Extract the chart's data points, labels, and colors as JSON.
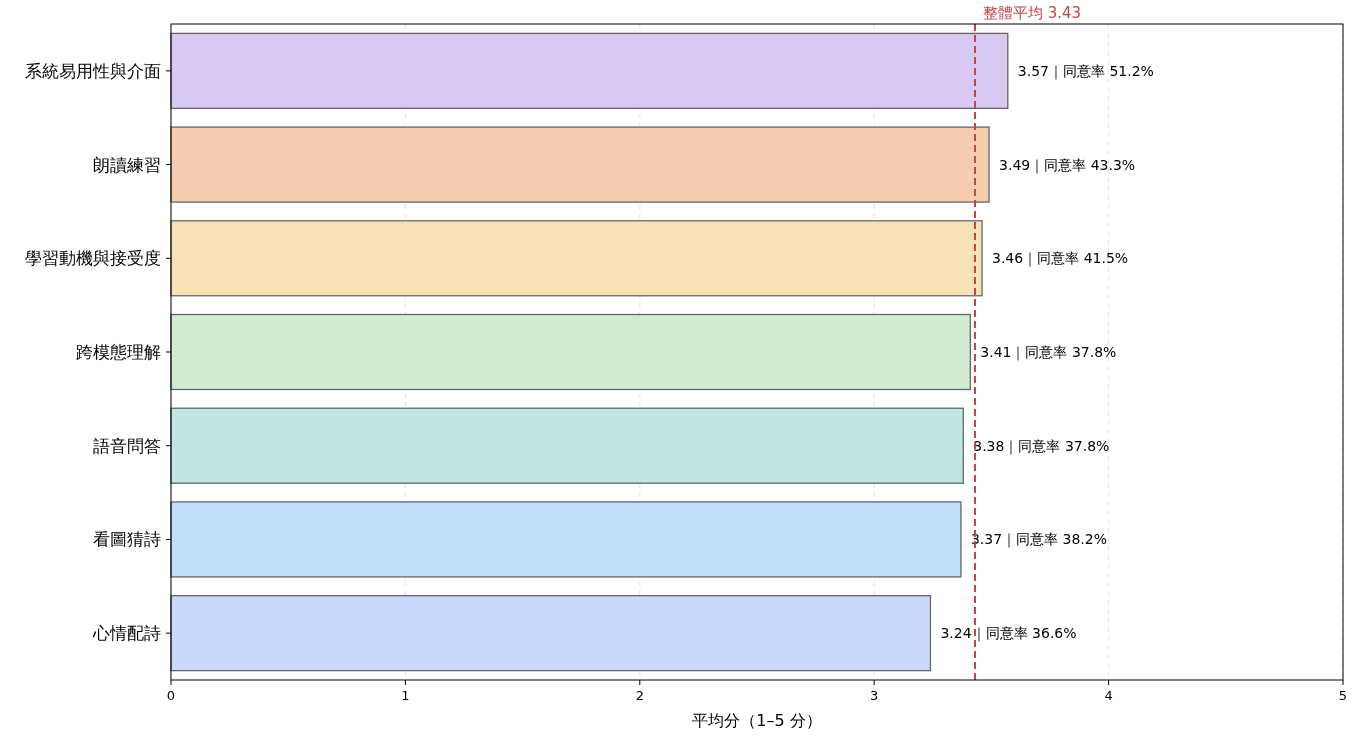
{
  "chart_data": {
    "type": "bar",
    "orientation": "horizontal",
    "xlabel": "平均分（1–5 分）",
    "categories": [
      "系統易用性與介面",
      "朗讀練習",
      "學習動機與接受度",
      "跨模態理解",
      "語音問答",
      "看圖猜詩",
      "心情配詩"
    ],
    "values": [
      3.57,
      3.49,
      3.46,
      3.41,
      3.38,
      3.37,
      3.24
    ],
    "colors": [
      "#d8c8f3",
      "#f6cdb0",
      "#f7e2b5",
      "#d0ebd1",
      "#bfe6e2",
      "#c1dffc",
      "#cbd8fd"
    ],
    "value_labels": [
      "3.57｜同意率 51.2%",
      "3.49｜同意率 43.3%",
      "3.46｜同意率 41.5%",
      "3.41｜同意率 37.8%",
      "3.38｜同意率 37.8%",
      "3.37｜同意率 38.2%",
      "3.24｜同意率 36.6%"
    ],
    "xlim": [
      0,
      5
    ],
    "xticks": [
      0,
      1,
      2,
      3,
      4,
      5
    ],
    "grid": "x",
    "ref_lines": [
      {
        "axis": "x",
        "value": 3.43,
        "label": "整體平均 3.43",
        "color": "#c0464b",
        "line_style": "dashed"
      }
    ]
  }
}
